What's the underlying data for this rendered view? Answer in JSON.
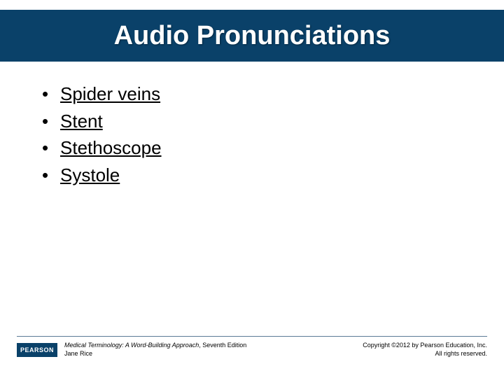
{
  "title": "Audio Pronunciations",
  "items": [
    {
      "label": "Spider veins"
    },
    {
      "label": "Stent"
    },
    {
      "label": "Stethoscope"
    },
    {
      "label": "Systole"
    }
  ],
  "footer": {
    "logo_text": "PEARSON",
    "book_title": "Medical Terminology: A Word-Building Approach",
    "book_edition": ", Seventh Edition",
    "book_author": "Jane Rice",
    "copyright_line1": "Copyright ©2012 by Pearson Education, Inc.",
    "copyright_line2": "All rights reserved."
  },
  "colors": {
    "title_bar_bg": "#0a4169",
    "title_text": "#ffffff",
    "body_text": "#000000",
    "rule": "#5a7a96",
    "slide_bg": "#ffffff"
  },
  "typography": {
    "title_fontsize": 38,
    "item_fontsize": 26,
    "footer_fontsize": 9
  }
}
